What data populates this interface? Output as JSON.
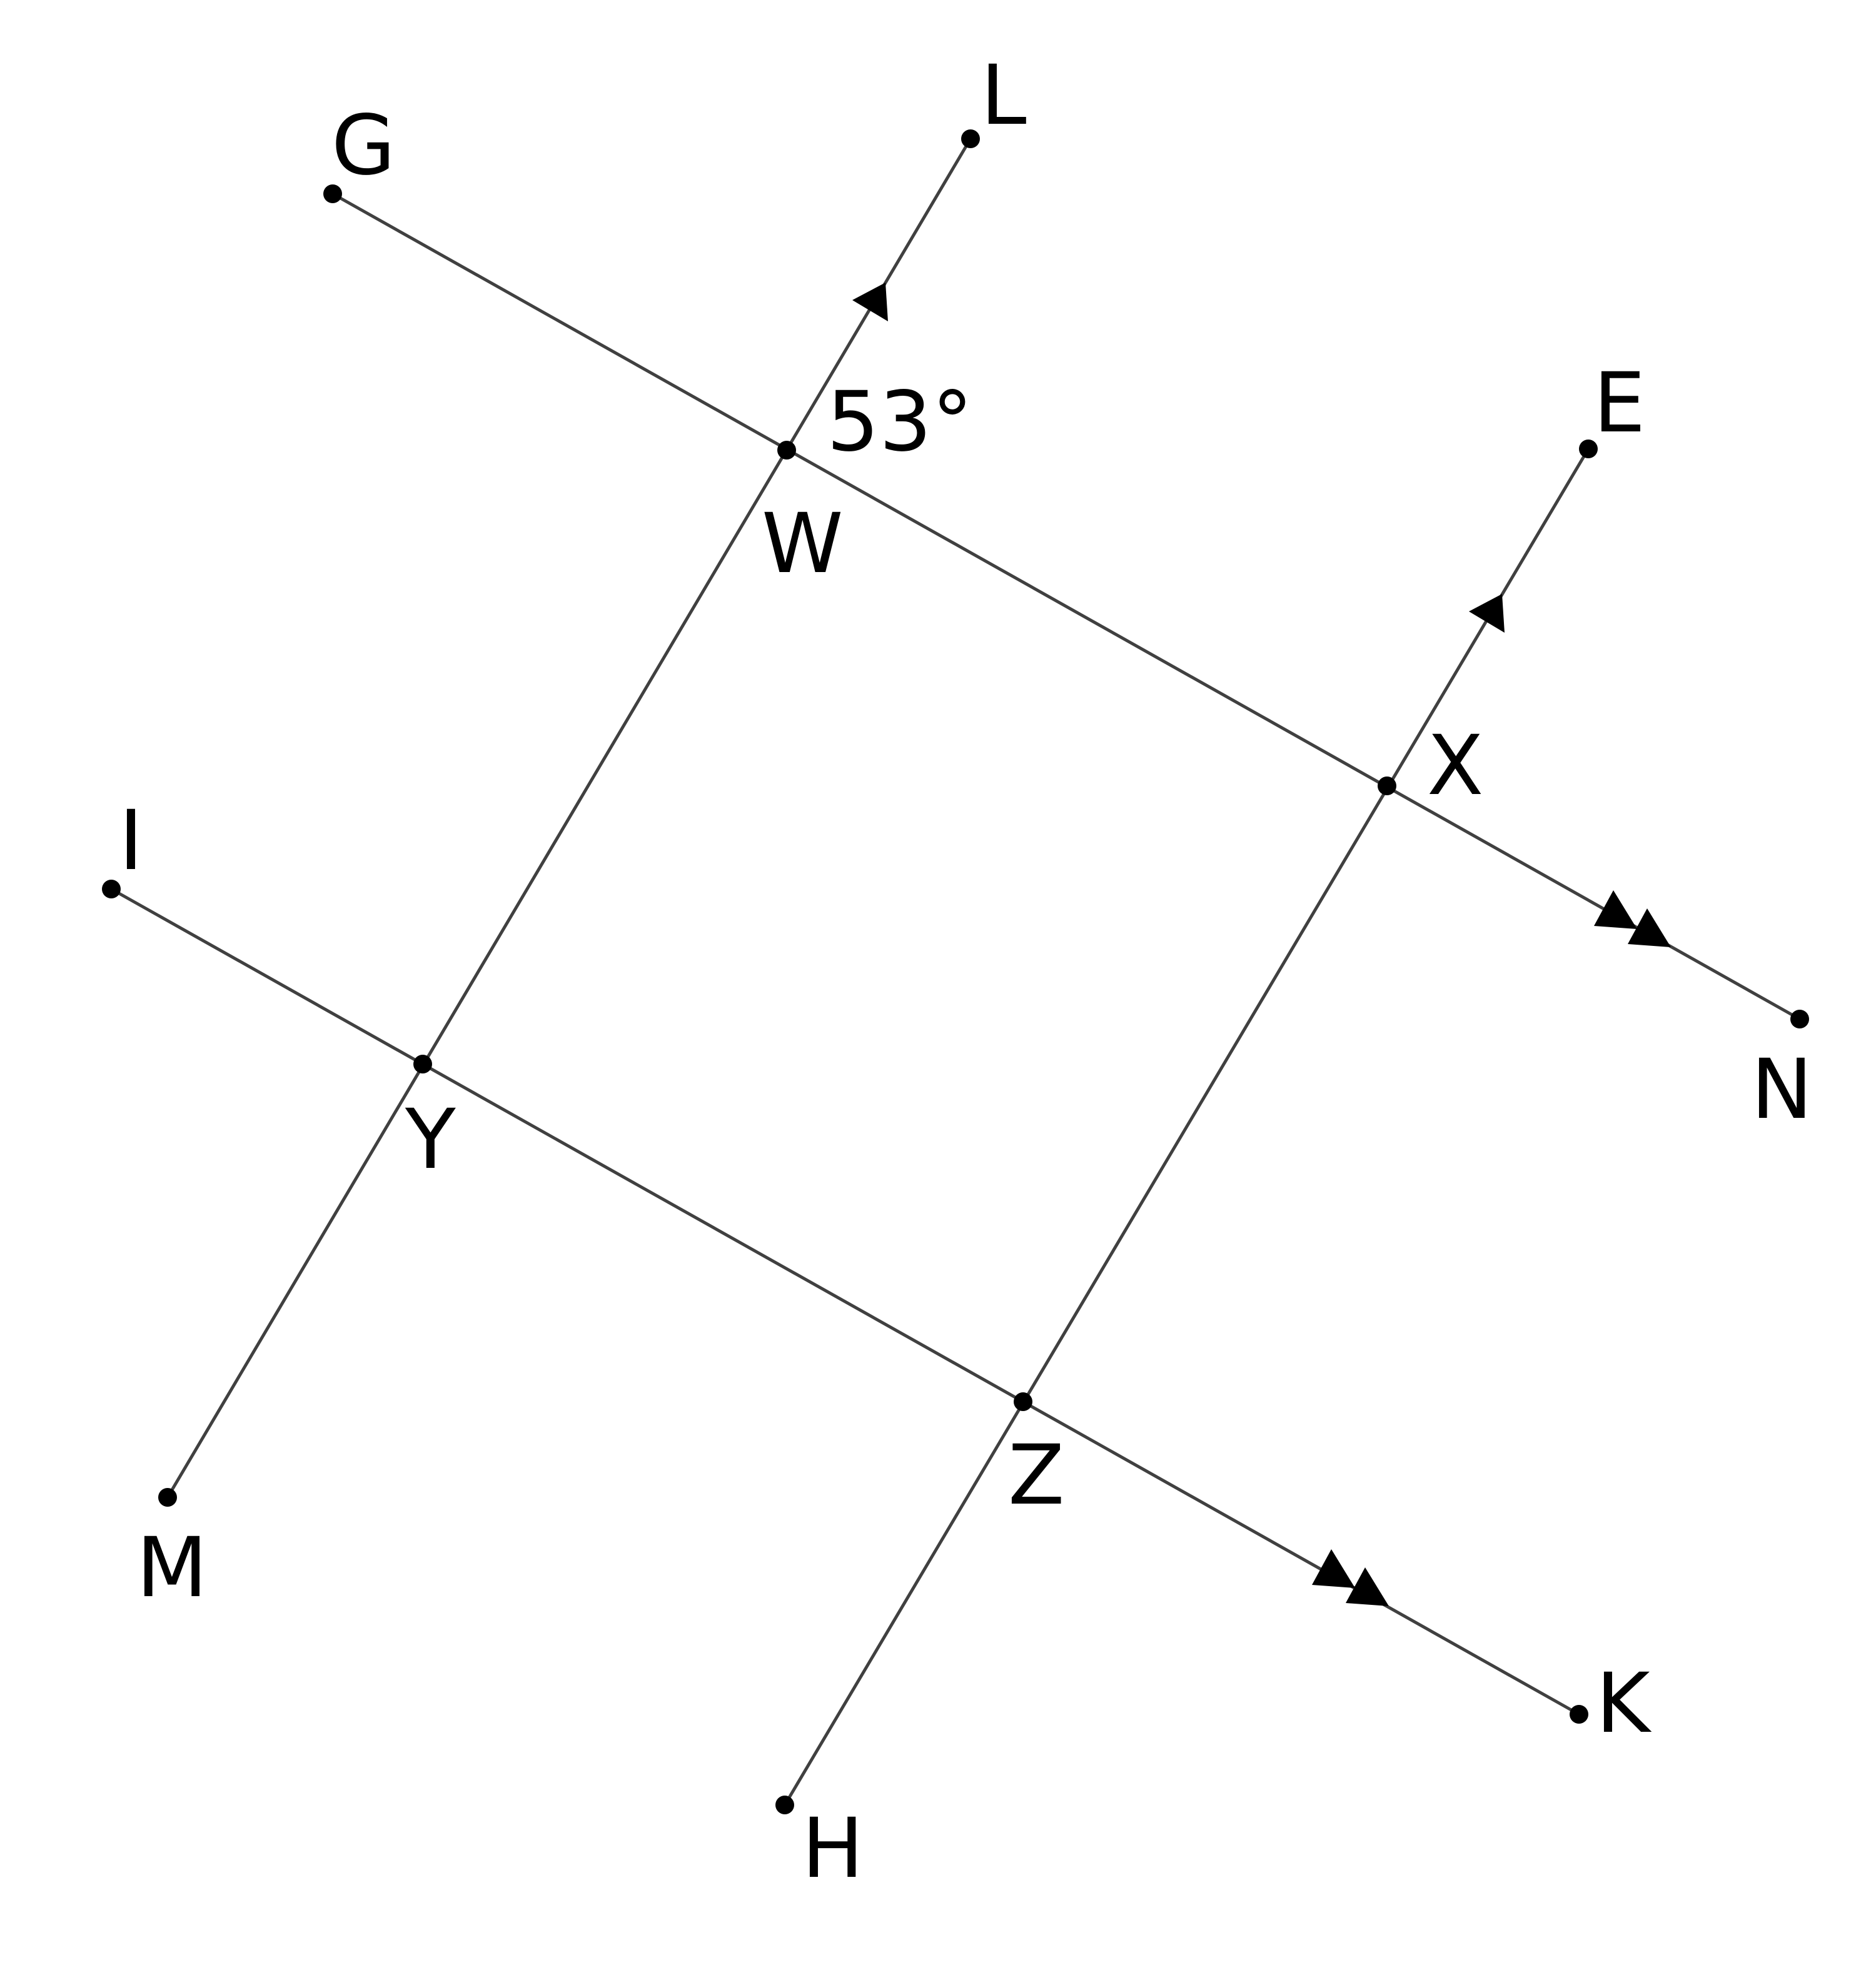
{
  "labels": {
    "G": "G",
    "L": "L",
    "E": "E",
    "W": "W",
    "X": "X",
    "I": "I",
    "N": "N",
    "Y": "Y",
    "Z": "Z",
    "M": "M",
    "H": "H",
    "K": "K"
  },
  "angle_label": "53°",
  "colors": {
    "line": "#404040",
    "point": "#000000",
    "text": "#000000"
  }
}
